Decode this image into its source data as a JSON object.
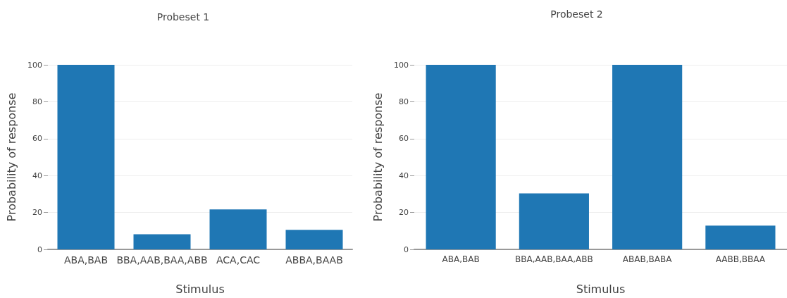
{
  "chart_data": [
    {
      "type": "bar",
      "title": "Probeset 1",
      "xlabel": "Stimulus",
      "ylabel": "Probability of response",
      "categories": [
        "ABA,BAB",
        "BBA,AAB,BAA,ABB",
        "ACA,CAC",
        "ABBA,BAAB"
      ],
      "values": [
        100,
        8.2,
        21.7,
        10.6
      ],
      "color": "#1f77b4",
      "ylim": [
        0,
        100
      ],
      "yticks": [
        0,
        20,
        40,
        60,
        80,
        100
      ],
      "grid": "y"
    },
    {
      "type": "bar",
      "title": "Probeset 2",
      "xlabel": "Stimulus",
      "ylabel": "Probability of response",
      "categories": [
        "ABA,BAB",
        "BBA,AAB,BAA,ABB",
        "ABAB,BABA",
        "AABB,BBAA"
      ],
      "values": [
        100,
        30.3,
        100,
        12.9
      ],
      "color": "#1f77b4",
      "ylim": [
        0,
        100
      ],
      "yticks": [
        0,
        20,
        40,
        60,
        80,
        100
      ],
      "grid": "y"
    }
  ]
}
